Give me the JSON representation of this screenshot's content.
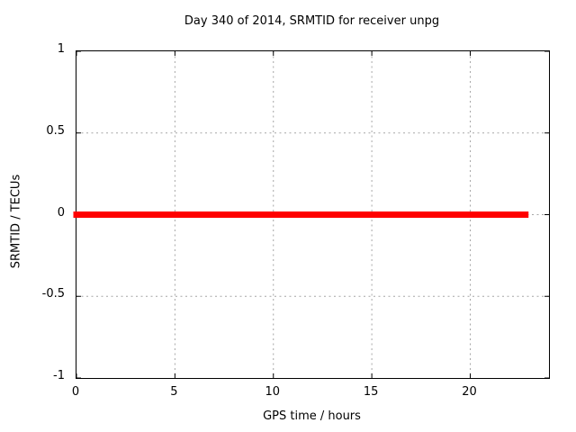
{
  "window": {
    "background_color": "#ffffff",
    "text_color": "#000000"
  },
  "chart_data": {
    "type": "line",
    "title": "Day 340 of 2014, SRMTID for receiver unpg",
    "xlabel": "GPS time / hours",
    "ylabel": "SRMTID / TECUs",
    "xlim": [
      0,
      24
    ],
    "ylim": [
      -1,
      1
    ],
    "grid": true,
    "legend": "none",
    "border_color": "#000000",
    "grid_color": "#a6a6a6",
    "xticks": [
      {
        "value": 0,
        "label": "0"
      },
      {
        "value": 5,
        "label": "5"
      },
      {
        "value": 10,
        "label": "10"
      },
      {
        "value": 15,
        "label": "15"
      },
      {
        "value": 20,
        "label": "20"
      }
    ],
    "yticks": [
      {
        "value": -1,
        "label": "-1"
      },
      {
        "value": -0.5,
        "label": "-0.5"
      },
      {
        "value": 0,
        "label": "0"
      },
      {
        "value": 0.5,
        "label": "0.5"
      },
      {
        "value": 1,
        "label": "1"
      }
    ],
    "series": [
      {
        "name": "SRMTID",
        "color": "#ff0000",
        "linewidth": 7,
        "points": [
          {
            "x": 0,
            "y": 0
          },
          {
            "x": 22.8,
            "y": 0
          }
        ]
      }
    ]
  }
}
